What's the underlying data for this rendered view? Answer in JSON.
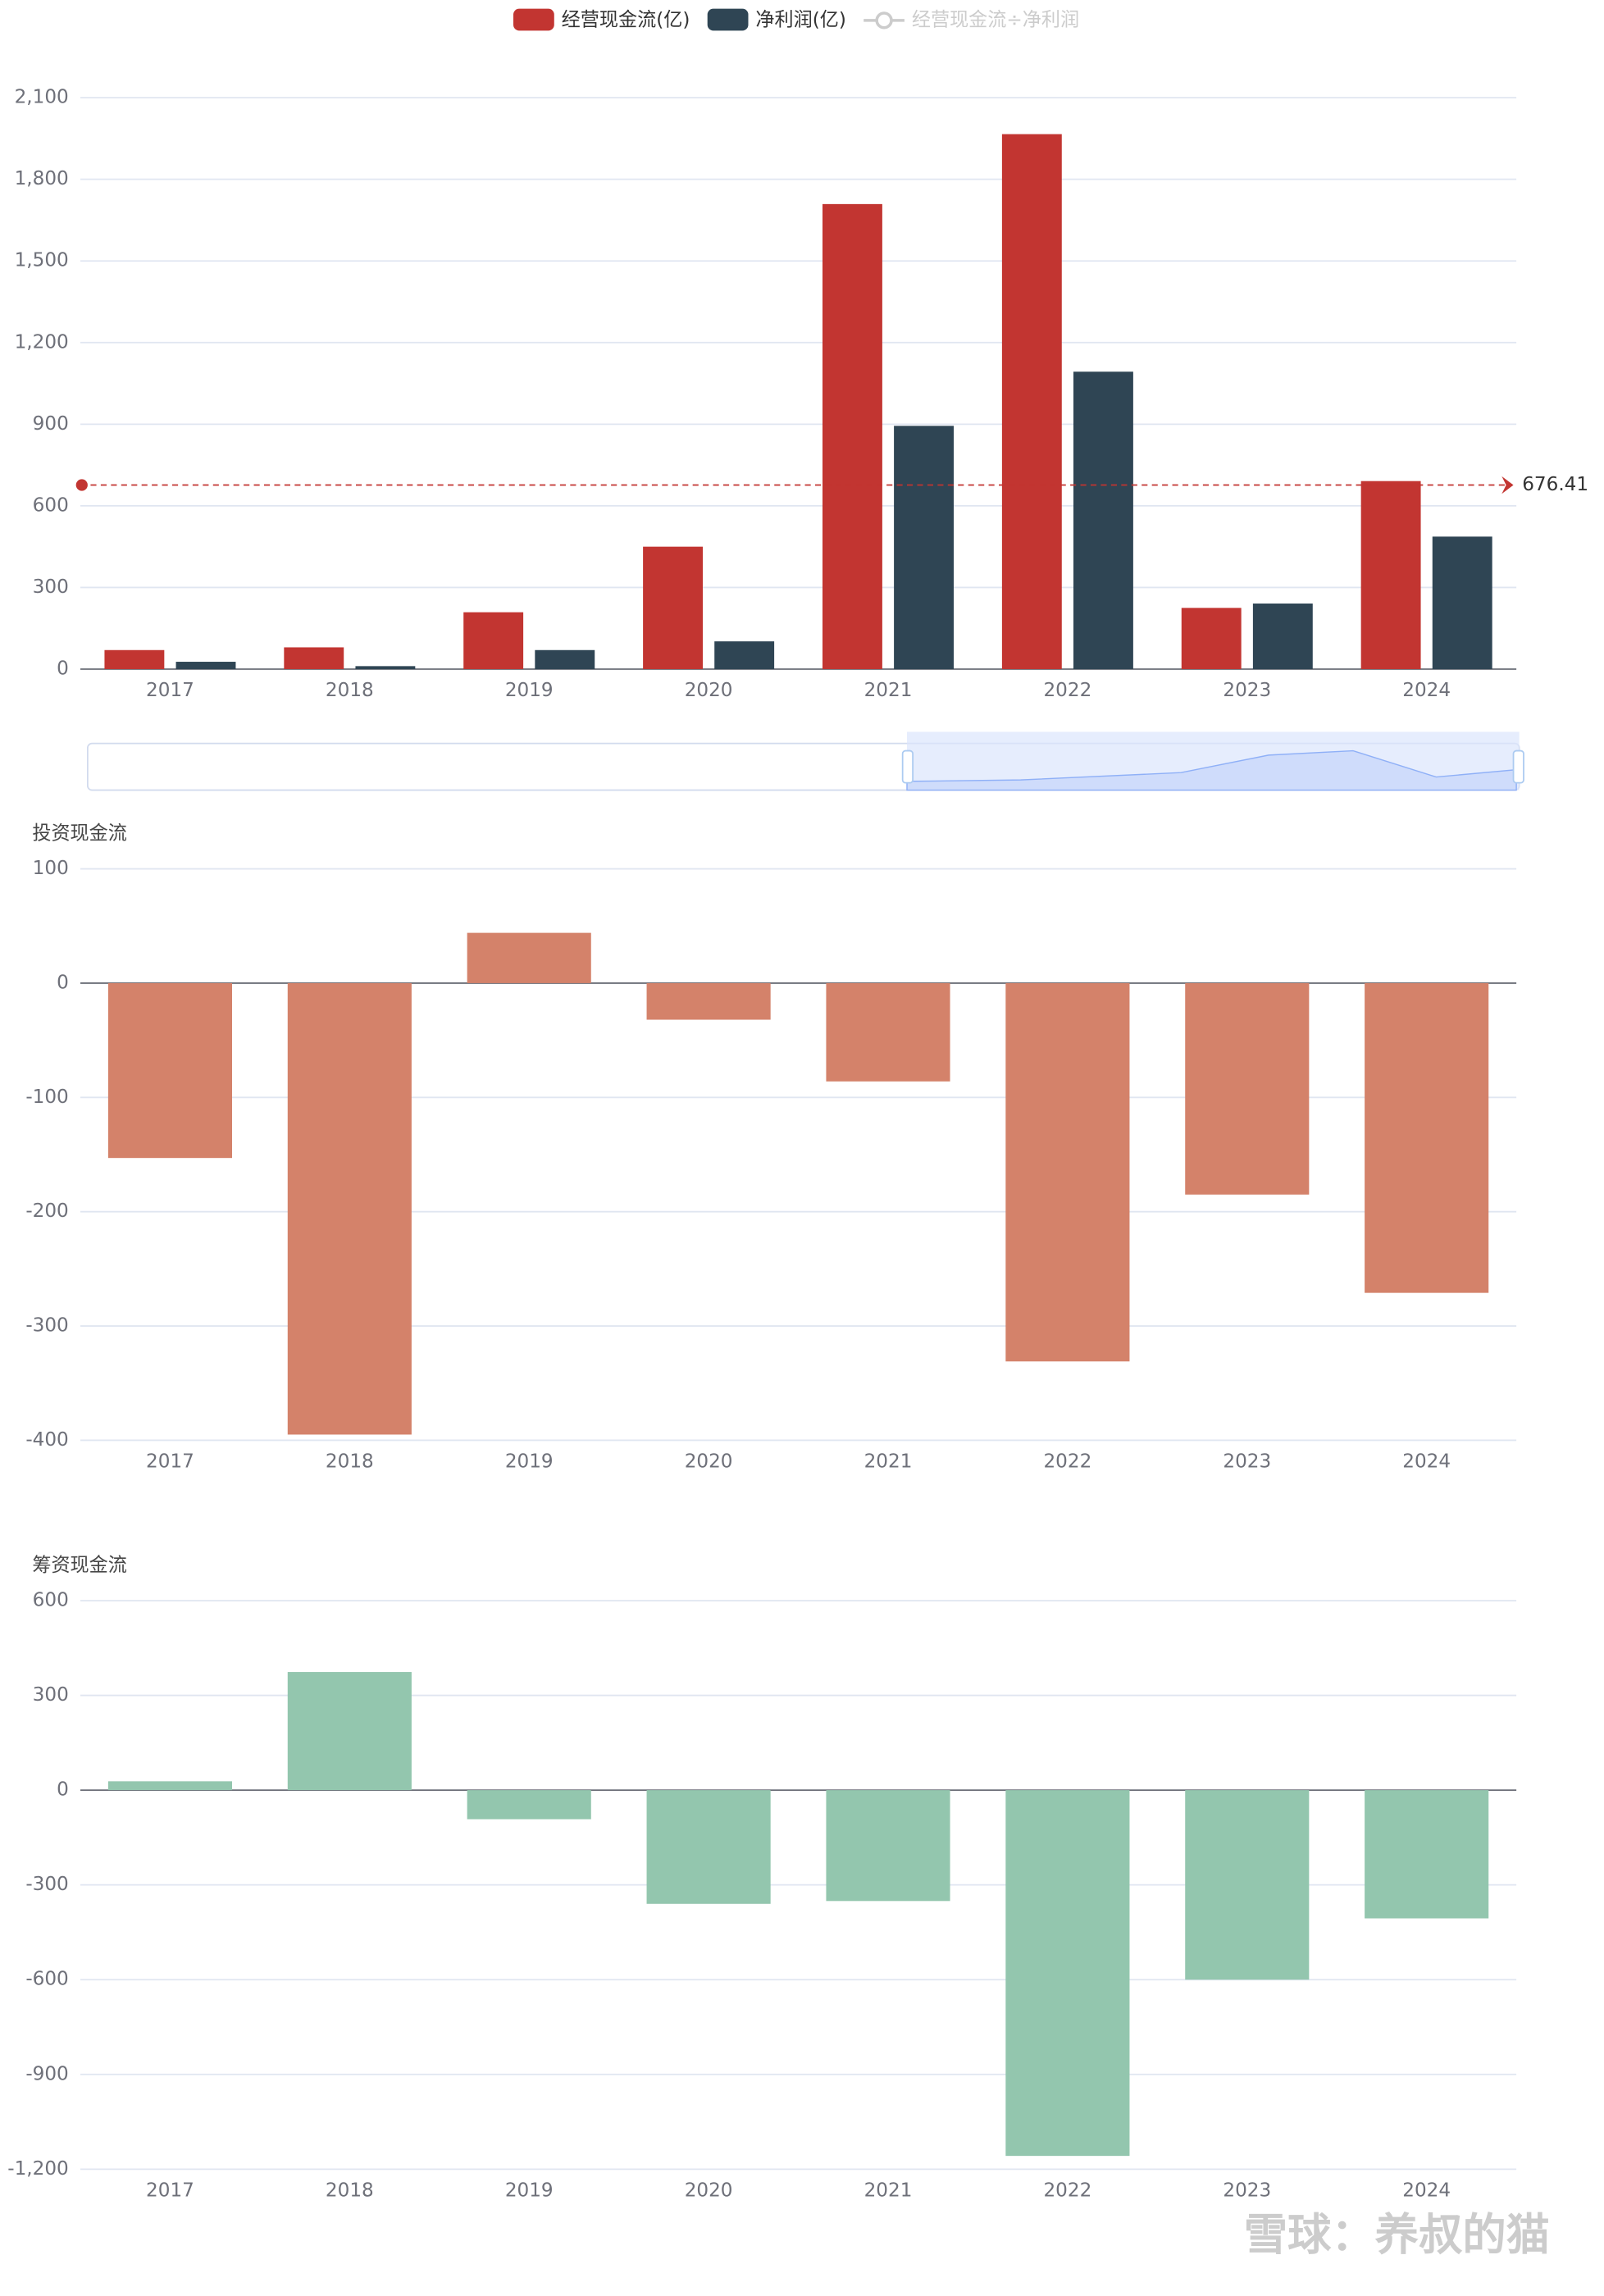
{
  "chart_data": [
    {
      "type": "bar",
      "categories": [
        "2017",
        "2018",
        "2019",
        "2020",
        "2021",
        "2022",
        "2023",
        "2024"
      ],
      "series": [
        {
          "name": "经营现金流(亿)",
          "color": "#c23531",
          "values": [
            70,
            80,
            209,
            450,
            1709,
            1966,
            225,
            691
          ]
        },
        {
          "name": "净利润(亿)",
          "color": "#2f4554",
          "values": [
            27,
            11,
            70,
            102,
            894,
            1093,
            241,
            487
          ]
        }
      ],
      "inactive_legend": "经营现金流÷净利润",
      "markline_value": 676.41,
      "ylim": [
        0,
        2100
      ],
      "yticks": [
        0,
        300,
        600,
        900,
        {
          "value": 1200,
          "label": "1,200"
        },
        {
          "value": 1500,
          "label": "1,500"
        },
        {
          "value": 1800,
          "label": "1,800"
        },
        {
          "value": 2100,
          "label": "2,100"
        }
      ],
      "grid": true
    },
    {
      "type": "bar",
      "title": "投资现金流",
      "categories": [
        "2017",
        "2018",
        "2019",
        "2020",
        "2021",
        "2022",
        "2023",
        "2024"
      ],
      "values": [
        -153,
        -395,
        44,
        -32,
        -86,
        -331,
        -185,
        -271
      ],
      "color": "#d4826a",
      "ylim": [
        -400,
        100
      ],
      "yticks": [
        -400,
        -300,
        -200,
        -100,
        0,
        100
      ],
      "grid": true
    },
    {
      "type": "bar",
      "title": "筹资现金流",
      "categories": [
        "2017",
        "2018",
        "2019",
        "2020",
        "2021",
        "2022",
        "2023",
        "2024"
      ],
      "values": [
        28,
        374,
        -92,
        -360,
        -351,
        -1158,
        -600,
        -406
      ],
      "color": "#93c6ae",
      "ylim": [
        -1200,
        600
      ],
      "yticks": [
        {
          "value": -1200,
          "label": "-1,200"
        },
        -900,
        -600,
        -300,
        0,
        300,
        600
      ],
      "grid": true
    }
  ],
  "watermark": "雪球：养叔的猫"
}
